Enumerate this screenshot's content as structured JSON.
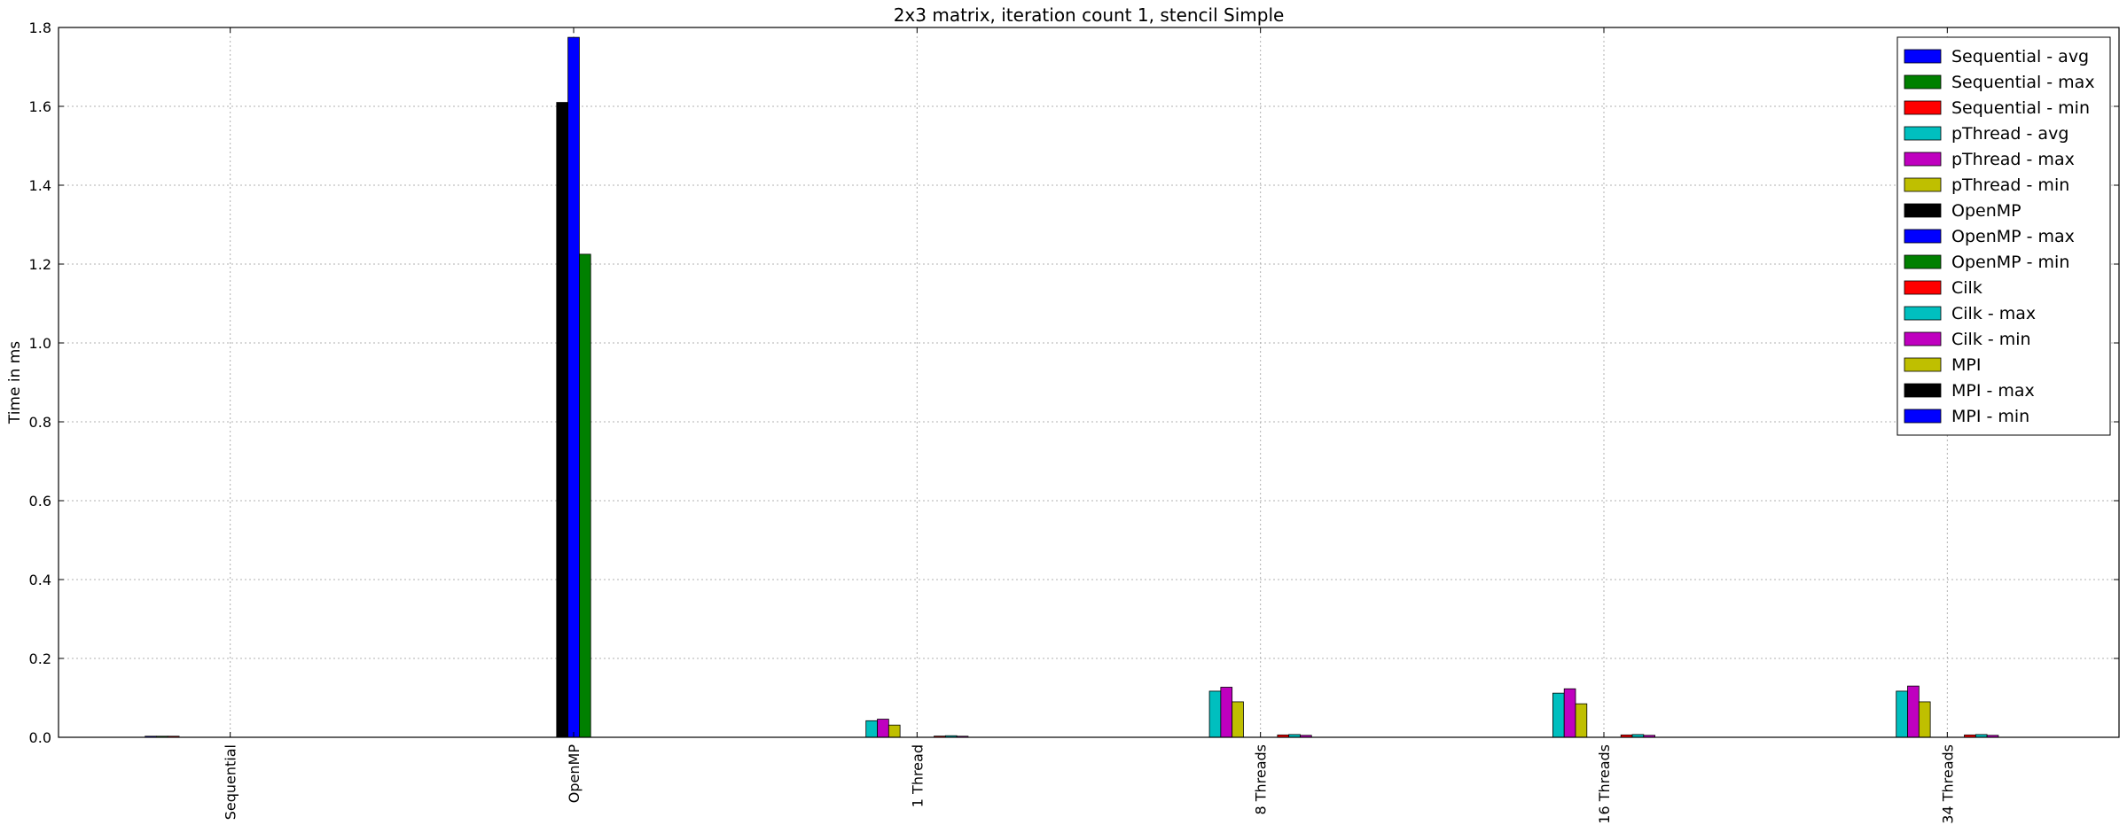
{
  "chart_data": {
    "type": "bar",
    "title": "2x3 matrix, iteration count 1, stencil Simple",
    "xlabel": "",
    "ylabel": "Time in ms",
    "ylim": [
      0,
      1.8
    ],
    "yticks": [
      "0.0",
      "0.2",
      "0.4",
      "0.6",
      "0.8",
      "1.0",
      "1.2",
      "1.4",
      "1.6",
      "1.8"
    ],
    "grid": true,
    "legend_position": "top-right",
    "categories": [
      "Sequential",
      "OpenMP",
      "1 Thread",
      "8 Threads",
      "16 Threads",
      "34 Threads"
    ],
    "series": [
      {
        "name": "Sequential - avg",
        "color": "#0000ff",
        "values": [
          0.002,
          0,
          0,
          0,
          0,
          0
        ]
      },
      {
        "name": "Sequential - max",
        "color": "#008000",
        "values": [
          0.002,
          0,
          0,
          0,
          0,
          0
        ]
      },
      {
        "name": "Sequential - min",
        "color": "#ff0000",
        "values": [
          0.002,
          0,
          0,
          0,
          0,
          0
        ]
      },
      {
        "name": "pThread - avg",
        "color": "#00bfbf",
        "values": [
          0,
          0,
          0.042,
          0.117,
          0.112,
          0.117
        ]
      },
      {
        "name": "pThread - max",
        "color": "#bf00bf",
        "values": [
          0,
          0,
          0.046,
          0.127,
          0.123,
          0.13
        ]
      },
      {
        "name": "pThread - min",
        "color": "#bfbf00",
        "values": [
          0,
          0,
          0.031,
          0.09,
          0.085,
          0.09
        ]
      },
      {
        "name": "OpenMP",
        "color": "#000000",
        "values": [
          0,
          1.61,
          0,
          0,
          0,
          0
        ]
      },
      {
        "name": "OpenMP - max",
        "color": "#0000ff",
        "values": [
          0,
          1.775,
          0,
          0,
          0,
          0
        ]
      },
      {
        "name": "OpenMP - min",
        "color": "#008000",
        "values": [
          0,
          1.225,
          0,
          0,
          0,
          0
        ]
      },
      {
        "name": "Cilk",
        "color": "#ff0000",
        "values": [
          0,
          0,
          0.003,
          0.006,
          0.006,
          0.006
        ]
      },
      {
        "name": "Cilk - max",
        "color": "#00bfbf",
        "values": [
          0,
          0,
          0.004,
          0.007,
          0.007,
          0.007
        ]
      },
      {
        "name": "Cilk - min",
        "color": "#bf00bf",
        "values": [
          0,
          0,
          0.002,
          0.005,
          0.005,
          0.005
        ]
      },
      {
        "name": "MPI",
        "color": "#bfbf00",
        "values": [
          0,
          0,
          0,
          0,
          0,
          0
        ]
      },
      {
        "name": "MPI - max",
        "color": "#000000",
        "values": [
          0,
          0,
          0,
          0,
          0,
          0
        ]
      },
      {
        "name": "MPI - min",
        "color": "#0000ff",
        "values": [
          0,
          0,
          0,
          0,
          0,
          0
        ]
      }
    ]
  }
}
